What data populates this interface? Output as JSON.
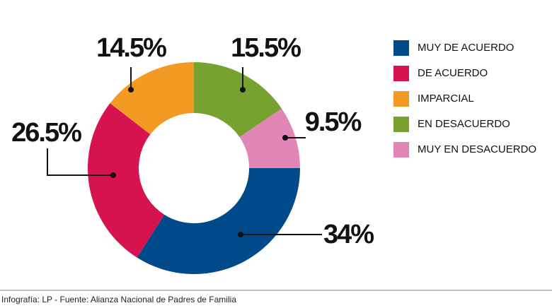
{
  "chart_data": {
    "type": "donut",
    "categories": [
      "MUY DE ACUERDO",
      "DE ACUERDO",
      "IMPARCIAL",
      "EN DESACUERDO",
      "MUY EN DESACUERDO"
    ],
    "values": [
      34,
      26.5,
      14.5,
      15.5,
      9.5
    ],
    "value_labels": [
      "34%",
      "26.5%",
      "14.5%",
      "15.5%",
      "9.5%"
    ],
    "colors": [
      "#004a8a",
      "#d6124f",
      "#f39a22",
      "#77a22f",
      "#e087b8"
    ],
    "legend": "right",
    "source": "Infografía: LP - Fuente: Alianza Nacional de Padres de Familia"
  }
}
